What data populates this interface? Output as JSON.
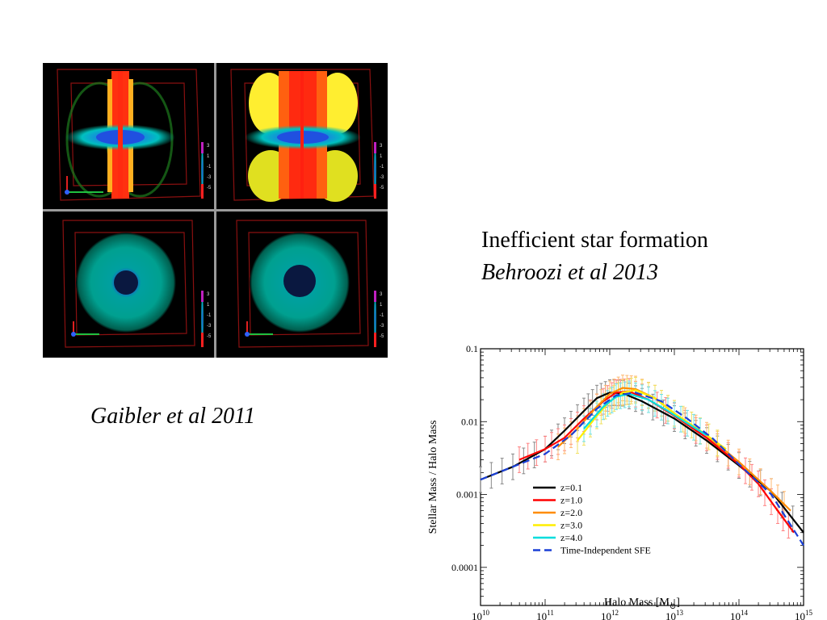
{
  "captions": {
    "gaibler": "Gaibler et al 2011",
    "behroozi_title": "Inefficient star formation",
    "behroozi_citation": "Behroozi et al 2013"
  },
  "simulation_figure": {
    "colorbar_ticks": [
      "3",
      "1",
      "-1",
      "-3",
      "-5"
    ]
  },
  "chart_data": {
    "type": "line",
    "xlabel": "Halo Mass [M",
    "xlabel_sub": "⊙",
    "xlabel_end": "]",
    "ylabel": "Stellar Mass / Halo Mass",
    "x_scale": "log",
    "y_scale": "log",
    "xlim": [
      10000000000.0,
      1000000000000000.0
    ],
    "ylim": [
      3e-05,
      0.1
    ],
    "x_tick_exponents": [
      "10",
      "11",
      "12",
      "13",
      "14",
      "15"
    ],
    "x_tick_base": "10",
    "y_ticks": [
      0.0001,
      0.001,
      0.01,
      0.1
    ],
    "y_tick_labels": [
      "0.0001",
      "0.001",
      "0.01",
      "0.1"
    ],
    "grid": false,
    "legend_position": "lower-left",
    "series": [
      {
        "name": "z=0.1",
        "color": "#000000",
        "dash": false,
        "x": [
          10.0,
          10.5,
          11.0,
          11.3,
          11.6,
          11.8,
          12.0,
          12.2,
          12.5,
          13.0,
          13.5,
          14.0,
          14.5,
          15.0
        ],
        "y": [
          0.0016,
          0.0024,
          0.0042,
          0.0075,
          0.014,
          0.021,
          0.025,
          0.0245,
          0.019,
          0.011,
          0.0055,
          0.0025,
          0.0011,
          0.0003
        ]
      },
      {
        "name": "z=1.0",
        "color": "#ff0000",
        "dash": false,
        "x": [
          10.6,
          11.0,
          11.3,
          11.6,
          11.9,
          12.1,
          12.3,
          12.6,
          13.0,
          13.5,
          14.0,
          14.3,
          14.6,
          14.85
        ],
        "y": [
          0.003,
          0.0042,
          0.006,
          0.011,
          0.019,
          0.025,
          0.026,
          0.02,
          0.012,
          0.006,
          0.0026,
          0.0014,
          0.0006,
          0.0003
        ]
      },
      {
        "name": "z=2.0",
        "color": "#ff8c00",
        "dash": false,
        "x": [
          11.2,
          11.5,
          11.8,
          12.0,
          12.2,
          12.4,
          12.7,
          13.0,
          13.5,
          14.0,
          14.5,
          14.8
        ],
        "y": [
          0.0045,
          0.008,
          0.016,
          0.024,
          0.029,
          0.028,
          0.021,
          0.013,
          0.0065,
          0.0028,
          0.0011,
          0.0006
        ]
      },
      {
        "name": "z=3.0",
        "color": "#ffee00",
        "dash": false,
        "x": [
          11.5,
          11.8,
          12.0,
          12.2,
          12.4,
          12.7,
          13.0,
          13.4,
          13.8
        ],
        "y": [
          0.0055,
          0.012,
          0.019,
          0.025,
          0.027,
          0.021,
          0.013,
          0.0075,
          0.0042
        ]
      },
      {
        "name": "z=4.0",
        "color": "#00dddd",
        "dash": false,
        "x": [
          11.6,
          11.9,
          12.1,
          12.3,
          12.6,
          12.9,
          13.2,
          13.5
        ],
        "y": [
          0.008,
          0.016,
          0.022,
          0.024,
          0.02,
          0.014,
          0.0095,
          0.0065
        ]
      },
      {
        "name": "Time-Independent SFE",
        "color": "#1a3fd6",
        "dash": true,
        "x": [
          10.0,
          10.5,
          11.0,
          11.4,
          11.8,
          12.1,
          12.4,
          12.8,
          13.2,
          13.6,
          14.0,
          14.5,
          15.0
        ],
        "y": [
          0.0016,
          0.0024,
          0.0036,
          0.0065,
          0.015,
          0.023,
          0.025,
          0.019,
          0.011,
          0.0058,
          0.0026,
          0.001,
          0.0002
        ]
      }
    ]
  }
}
